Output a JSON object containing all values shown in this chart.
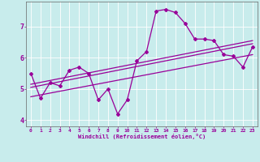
{
  "xlabel": "Windchill (Refroidissement éolien,°C)",
  "xlim": [
    -0.5,
    23.5
  ],
  "ylim": [
    3.8,
    7.8
  ],
  "xticks": [
    0,
    1,
    2,
    3,
    4,
    5,
    6,
    7,
    8,
    9,
    10,
    11,
    12,
    13,
    14,
    15,
    16,
    17,
    18,
    19,
    20,
    21,
    22,
    23
  ],
  "yticks": [
    4,
    5,
    6,
    7
  ],
  "bg_color": "#c8ecec",
  "line_color": "#990099",
  "main_data_x": [
    0,
    1,
    2,
    3,
    4,
    5,
    6,
    7,
    8,
    9,
    10,
    11,
    12,
    13,
    14,
    15,
    16,
    17,
    18,
    19,
    20,
    21,
    22,
    23
  ],
  "main_data_y": [
    5.5,
    4.7,
    5.2,
    5.1,
    5.6,
    5.7,
    5.5,
    4.65,
    5.0,
    4.2,
    4.65,
    5.9,
    6.2,
    7.5,
    7.55,
    7.45,
    7.1,
    6.6,
    6.6,
    6.55,
    6.1,
    6.05,
    5.7,
    6.35
  ],
  "trend1_x": [
    0,
    23
  ],
  "trend1_y": [
    5.15,
    6.55
  ],
  "trend2_x": [
    0,
    23
  ],
  "trend2_y": [
    5.05,
    6.45
  ],
  "trend3_x": [
    0,
    23
  ],
  "trend3_y": [
    4.75,
    6.1
  ]
}
